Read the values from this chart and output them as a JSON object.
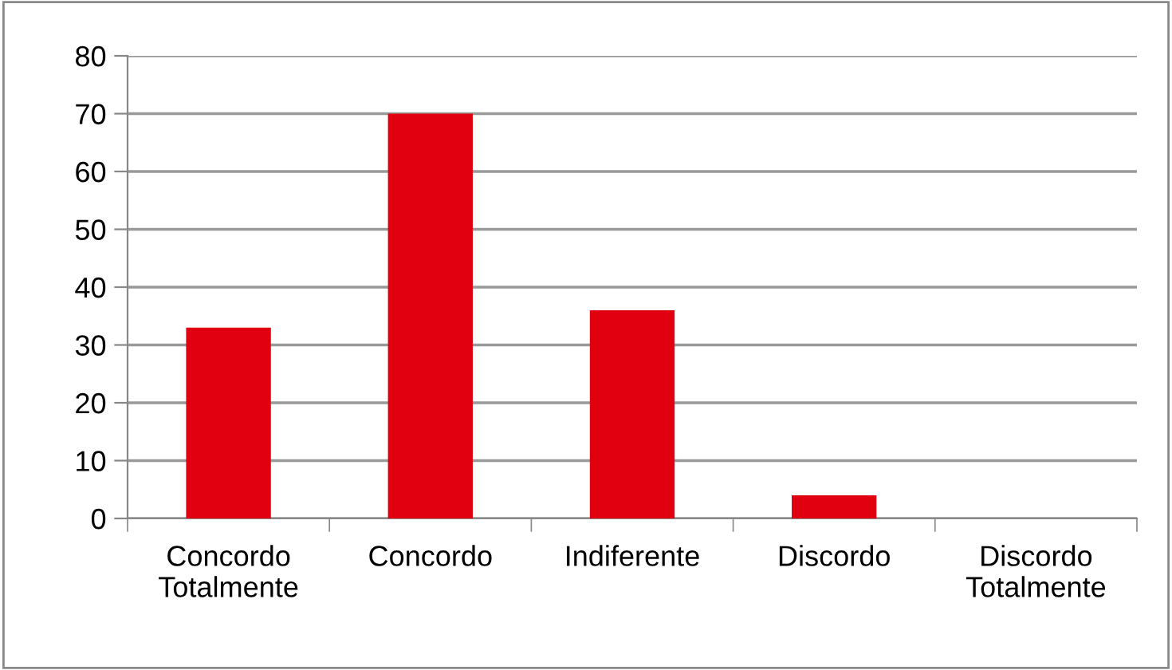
{
  "chart_data": {
    "type": "bar",
    "categories": [
      "Concordo\nTotalmente",
      "Concordo",
      "Indiferente",
      "Discordo",
      "Discordo\nTotalmente"
    ],
    "values": [
      33,
      70,
      36,
      4,
      0
    ],
    "color": "#e0000f",
    "ylim": [
      0,
      80
    ],
    "yticks": [
      0,
      10,
      20,
      30,
      40,
      50,
      60,
      70,
      80
    ],
    "grid": "y",
    "legend": false
  }
}
